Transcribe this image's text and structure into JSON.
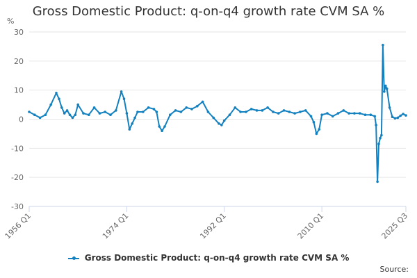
{
  "chart_title": "Gross Domestic Product: q-on-q4 growth rate CVM SA %",
  "source_label": "Source:",
  "colors": {
    "series": "#1380bf",
    "grid": "#e6e6e6",
    "axis": "#ccd6eb"
  },
  "chart_data": {
    "type": "line",
    "title": "Gross Domestic Product: q-on-q4 growth rate CVM SA %",
    "ylabel": "%",
    "xlabel": "",
    "ylim": [
      -30,
      30
    ],
    "yticks": [
      30,
      20,
      10,
      0,
      -10,
      -20,
      -30
    ],
    "xtick_labels": [
      "1956 Q1",
      "1974 Q1",
      "1992 Q1",
      "2010 Q1",
      "2025 Q3"
    ],
    "xlim": [
      "1956 Q1",
      "2025 Q3"
    ],
    "grid": true,
    "legend": "bottom-center",
    "series": [
      {
        "name": "Gross Domestic Product: q-on-q4 growth rate CVM SA %",
        "x": [
          "1956 Q1",
          "1957 Q1",
          "1958 Q1",
          "1959 Q1",
          "1960 Q1",
          "1961 Q1",
          "1961 Q3",
          "1962 Q1",
          "1962 Q3",
          "1963 Q1",
          "1963 Q3",
          "1964 Q1",
          "1964 Q3",
          "1965 Q1",
          "1966 Q1",
          "1967 Q1",
          "1968 Q1",
          "1969 Q1",
          "1970 Q1",
          "1971 Q1",
          "1972 Q1",
          "1973 Q1",
          "1973 Q3",
          "1974 Q1",
          "1974 Q3",
          "1975 Q1",
          "1975 Q3",
          "1976 Q1",
          "1977 Q1",
          "1978 Q1",
          "1979 Q1",
          "1979 Q3",
          "1980 Q1",
          "1980 Q3",
          "1981 Q1",
          "1982 Q1",
          "1983 Q1",
          "1984 Q1",
          "1985 Q1",
          "1986 Q1",
          "1987 Q1",
          "1988 Q1",
          "1989 Q1",
          "1990 Q1",
          "1991 Q1",
          "1991 Q3",
          "1992 Q1",
          "1993 Q1",
          "1994 Q1",
          "1995 Q1",
          "1996 Q1",
          "1997 Q1",
          "1998 Q1",
          "1999 Q1",
          "2000 Q1",
          "2001 Q1",
          "2002 Q1",
          "2003 Q1",
          "2004 Q1",
          "2005 Q1",
          "2006 Q1",
          "2007 Q1",
          "2008 Q1",
          "2008 Q3",
          "2009 Q1",
          "2009 Q3",
          "2010 Q1",
          "2011 Q1",
          "2012 Q1",
          "2013 Q1",
          "2014 Q1",
          "2015 Q1",
          "2016 Q1",
          "2017 Q1",
          "2018 Q1",
          "2019 Q1",
          "2019 Q4",
          "2020 Q1",
          "2020 Q2",
          "2020 Q3",
          "2020 Q4",
          "2021 Q1",
          "2021 Q2",
          "2021 Q3",
          "2021 Q4",
          "2022 Q1",
          "2022 Q3",
          "2023 Q1",
          "2023 Q3",
          "2024 Q1",
          "2024 Q3",
          "2025 Q1",
          "2025 Q3"
        ],
        "values": [
          2.5,
          1.5,
          0.5,
          1.5,
          5.0,
          9.0,
          7.0,
          4.0,
          2.0,
          3.0,
          1.5,
          0.5,
          1.5,
          5.0,
          2.0,
          1.5,
          4.0,
          2.0,
          2.5,
          1.5,
          3.0,
          9.5,
          7.0,
          2.0,
          -3.5,
          -1.5,
          0.5,
          2.5,
          2.5,
          4.0,
          3.5,
          2.5,
          -2.5,
          -4.0,
          -2.5,
          1.5,
          3.0,
          2.5,
          4.0,
          3.5,
          4.5,
          6.0,
          2.5,
          0.5,
          -1.5,
          -2.0,
          -0.5,
          1.5,
          4.0,
          2.5,
          2.5,
          3.5,
          3.0,
          3.0,
          4.0,
          2.5,
          2.0,
          3.0,
          2.5,
          2.0,
          2.5,
          3.0,
          1.0,
          -1.0,
          -5.0,
          -3.5,
          1.5,
          2.0,
          1.0,
          2.0,
          3.0,
          2.0,
          2.0,
          2.0,
          1.5,
          1.5,
          1.0,
          -2.0,
          -21.5,
          -8.5,
          -6.5,
          -5.5,
          25.5,
          9.5,
          11.5,
          10.5,
          4.0,
          0.8,
          0.3,
          0.5,
          1.2,
          1.8,
          1.3
        ]
      }
    ]
  }
}
